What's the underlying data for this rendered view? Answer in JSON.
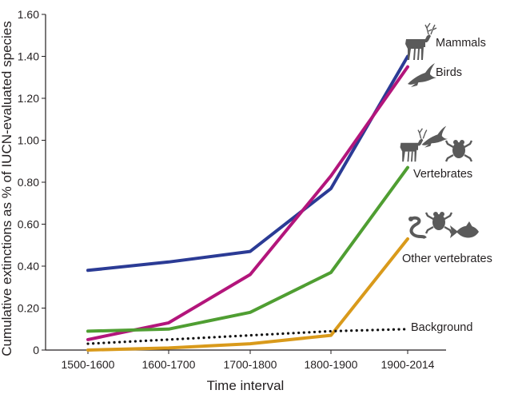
{
  "chart_data": {
    "type": "line",
    "xlabel": "Time interval",
    "ylabel": "Cumulative extinctions as % of IUCN-evaluated species",
    "categories": [
      "1500-1600",
      "1600-1700",
      "1700-1800",
      "1800-1900",
      "1900-2014"
    ],
    "ylim": [
      0,
      1.6
    ],
    "yticks": [
      {
        "value": 0,
        "label": "0"
      },
      {
        "value": 0.2,
        "label": "0.20"
      },
      {
        "value": 0.4,
        "label": "0.40"
      },
      {
        "value": 0.6,
        "label": "0.60"
      },
      {
        "value": 0.8,
        "label": "0.80"
      },
      {
        "value": 1.0,
        "label": "1.00"
      },
      {
        "value": 1.2,
        "label": "1.20"
      },
      {
        "value": 1.4,
        "label": "1.40"
      },
      {
        "value": 1.6,
        "label": "1.60"
      }
    ],
    "series": [
      {
        "name": "Mammals",
        "color": "#2b3b95",
        "dashed": false,
        "values": [
          0.38,
          0.42,
          0.47,
          0.77,
          1.4
        ]
      },
      {
        "name": "Birds",
        "color": "#b3157b",
        "dashed": false,
        "values": [
          0.05,
          0.13,
          0.36,
          0.83,
          1.35
        ]
      },
      {
        "name": "Vertebrates",
        "color": "#4f9e32",
        "dashed": false,
        "values": [
          0.09,
          0.1,
          0.18,
          0.37,
          0.87
        ]
      },
      {
        "name": "Other vertebrates",
        "color": "#d99a1b",
        "dashed": false,
        "values": [
          0.0,
          0.01,
          0.03,
          0.07,
          0.53
        ]
      },
      {
        "name": "Background",
        "color": "#111111",
        "dashed": true,
        "values": [
          0.03,
          0.05,
          0.07,
          0.09,
          0.1
        ]
      }
    ]
  }
}
